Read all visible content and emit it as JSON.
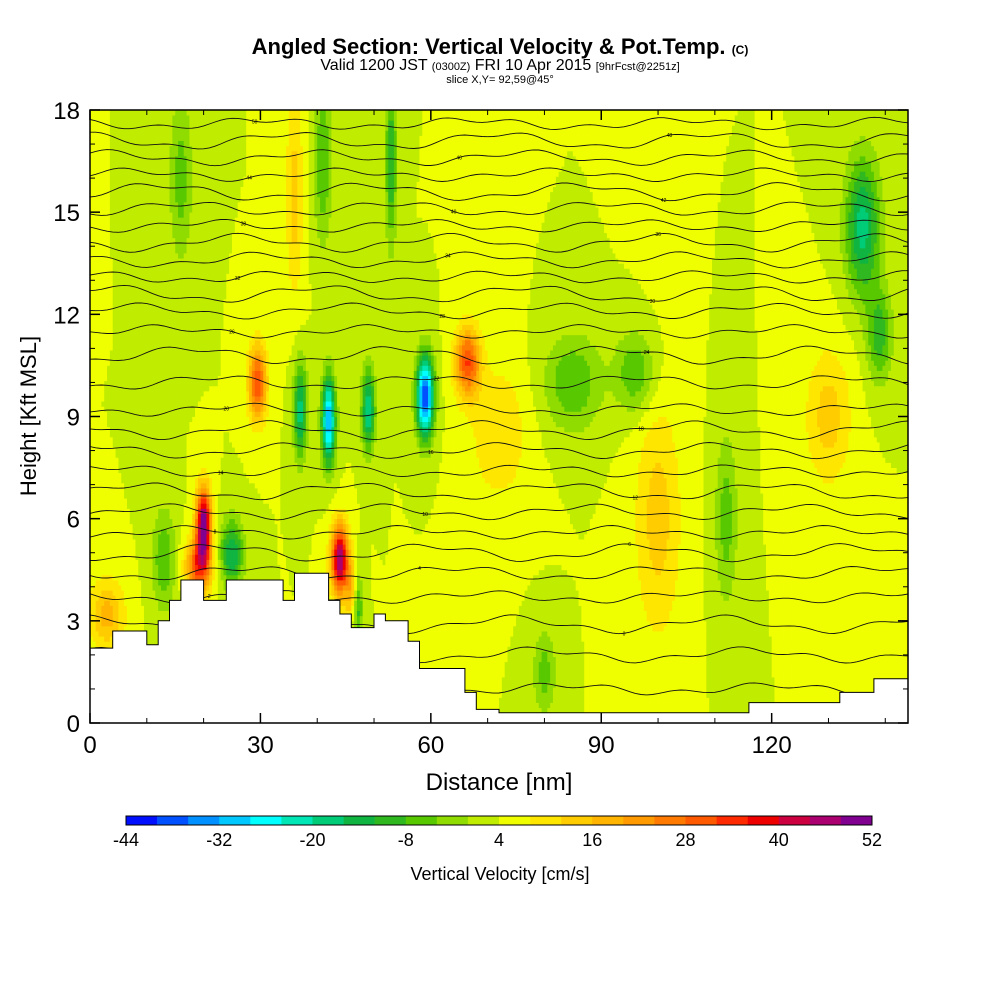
{
  "chart_data": {
    "type": "heatmap",
    "title": "Angled Section: Vertical Velocity & Pot.Temp.",
    "title_suffix": "(C)",
    "subtitle": {
      "valid": "Valid 1200 JST",
      "utc": "(0300Z)",
      "date": "FRI 10 Apr 2015",
      "forecast": "[9hrFcst@2251z]",
      "slice": "slice X,Y= 92,59@45°"
    },
    "xlabel": "Distance [nm]",
    "ylabel": "Height [Kft MSL]",
    "xlim": [
      0,
      144
    ],
    "ylim": [
      0,
      18
    ],
    "xticks": [
      0,
      30,
      60,
      90,
      120
    ],
    "yticks": [
      0,
      3,
      6,
      9,
      12,
      15,
      18
    ],
    "colorbar": {
      "label": "Vertical Velocity [cm/s]",
      "ticks": [
        -44,
        -32,
        -20,
        -8,
        4,
        16,
        28,
        40,
        52
      ],
      "levels": [
        -44,
        -40,
        -36,
        -32,
        -28,
        -24,
        -20,
        -16,
        -12,
        -8,
        -4,
        0,
        4,
        8,
        12,
        16,
        20,
        24,
        28,
        32,
        36,
        40,
        44,
        48,
        52
      ],
      "colors": [
        "#0010ff",
        "#0050ff",
        "#0090ff",
        "#00c8ff",
        "#00ffff",
        "#00e6b4",
        "#00cc78",
        "#10b440",
        "#30b820",
        "#58c800",
        "#90dc00",
        "#c0ec00",
        "#f0ff00",
        "#ffe600",
        "#ffcc00",
        "#ffb400",
        "#ff9a00",
        "#ff7a00",
        "#ff5a00",
        "#ff2a00",
        "#ee0000",
        "#cc0040",
        "#aa0070",
        "#800090"
      ]
    },
    "background_value": 4,
    "terrain": [
      [
        0,
        2.2
      ],
      [
        4,
        2.7
      ],
      [
        8,
        2.7
      ],
      [
        10,
        2.3
      ],
      [
        12,
        3.0
      ],
      [
        14,
        3.6
      ],
      [
        16,
        4.2
      ],
      [
        18,
        4.2
      ],
      [
        20,
        3.6
      ],
      [
        22,
        3.6
      ],
      [
        24,
        4.2
      ],
      [
        28,
        4.2
      ],
      [
        34,
        3.6
      ],
      [
        36,
        4.4
      ],
      [
        40,
        4.4
      ],
      [
        42,
        3.6
      ],
      [
        44,
        3.2
      ],
      [
        46,
        2.8
      ],
      [
        48,
        2.8
      ],
      [
        50,
        3.2
      ],
      [
        52,
        3.0
      ],
      [
        56,
        2.4
      ],
      [
        58,
        1.6
      ],
      [
        62,
        1.6
      ],
      [
        66,
        0.9
      ],
      [
        68,
        0.4
      ],
      [
        72,
        0.3
      ],
      [
        110,
        0.3
      ],
      [
        114,
        0.3
      ],
      [
        116,
        0.6
      ],
      [
        128,
        0.6
      ],
      [
        132,
        0.9
      ],
      [
        138,
        1.3
      ],
      [
        144,
        1.3
      ]
    ],
    "velocity_features": [
      {
        "x": 20,
        "z": 5.8,
        "sx": 1.3,
        "sz": 1.1,
        "w": 48
      },
      {
        "x": 19,
        "z": 4.6,
        "sx": 2.2,
        "sz": 0.8,
        "w": 26
      },
      {
        "x": 44,
        "z": 4.8,
        "sx": 1.5,
        "sz": 1.0,
        "w": 44
      },
      {
        "x": 46.5,
        "z": 3.8,
        "sx": 1.2,
        "sz": 0.9,
        "w": 24
      },
      {
        "x": 29.5,
        "z": 10.0,
        "sx": 1.6,
        "sz": 1.1,
        "w": 28
      },
      {
        "x": 66.5,
        "z": 10.6,
        "sx": 2.2,
        "sz": 1.0,
        "w": 28
      },
      {
        "x": 3,
        "z": 3.2,
        "sx": 3.0,
        "sz": 1.0,
        "w": 14
      },
      {
        "x": 47,
        "z": 3.6,
        "sx": 1.0,
        "sz": 1.0,
        "w": -28
      },
      {
        "x": 42,
        "z": 8.9,
        "sx": 1.2,
        "sz": 1.3,
        "w": -36
      },
      {
        "x": 59,
        "z": 9.6,
        "sx": 1.5,
        "sz": 1.2,
        "w": -44
      },
      {
        "x": 49,
        "z": 9.2,
        "sx": 1.2,
        "sz": 1.2,
        "w": -24
      },
      {
        "x": 37,
        "z": 9.2,
        "sx": 1.2,
        "sz": 1.4,
        "w": -22
      },
      {
        "x": 25,
        "z": 5.0,
        "sx": 2.0,
        "sz": 1.0,
        "w": -20
      },
      {
        "x": 13,
        "z": 4.8,
        "sx": 2.0,
        "sz": 1.5,
        "w": -12
      },
      {
        "x": 136,
        "z": 14.6,
        "sx": 3.0,
        "sz": 2.0,
        "w": -22
      },
      {
        "x": 139,
        "z": 11.4,
        "sx": 2.2,
        "sz": 1.4,
        "w": -14
      },
      {
        "x": 85,
        "z": 10.0,
        "sx": 5.0,
        "sz": 1.4,
        "w": -12
      },
      {
        "x": 96,
        "z": 10.3,
        "sx": 3.5,
        "sz": 1.2,
        "w": -12
      },
      {
        "x": 53,
        "z": 16.5,
        "sx": 1.0,
        "sz": 2.5,
        "w": -16
      },
      {
        "x": 41,
        "z": 16.5,
        "sx": 1.5,
        "sz": 2.5,
        "w": -12
      },
      {
        "x": 16,
        "z": 16.0,
        "sx": 2.0,
        "sz": 2.5,
        "w": -10
      },
      {
        "x": 36,
        "z": 15.5,
        "sx": 1.5,
        "sz": 3.0,
        "w": 10
      },
      {
        "x": 100,
        "z": 6.0,
        "sx": 4.0,
        "sz": 3.5,
        "w": 10
      },
      {
        "x": 130,
        "z": 9.0,
        "sx": 4.0,
        "sz": 2.0,
        "w": 10
      },
      {
        "x": 112,
        "z": 6.0,
        "sx": 2.0,
        "sz": 2.5,
        "w": -10
      },
      {
        "x": 80,
        "z": 1.5,
        "sx": 2.0,
        "sz": 1.2,
        "w": -10
      },
      {
        "x": 72,
        "z": 8.5,
        "sx": 5.0,
        "sz": 2.0,
        "w": 8
      }
    ],
    "isentropes": [
      {
        "label": "-4",
        "base": 1.0
      },
      {
        "label": "-2",
        "base": 2.0
      },
      {
        "label": "0",
        "base": 2.9
      },
      {
        "label": "2",
        "base": 3.7
      },
      {
        "label": "4",
        "base": 4.4
      },
      {
        "label": "6",
        "base": 5.0
      },
      {
        "label": "8",
        "base": 5.6
      },
      {
        "label": "10",
        "base": 6.2
      },
      {
        "label": "12",
        "base": 6.8
      },
      {
        "label": "14",
        "base": 7.4
      },
      {
        "label": "16",
        "base": 8.0
      },
      {
        "label": "18",
        "base": 8.6
      },
      {
        "label": "20",
        "base": 9.2
      },
      {
        "label": "22",
        "base": 10.0
      },
      {
        "label": "24",
        "base": 10.8
      },
      {
        "label": "26",
        "base": 11.5
      },
      {
        "label": "28",
        "base": 12.1
      },
      {
        "label": "30",
        "base": 12.6
      },
      {
        "label": "32",
        "base": 13.1
      },
      {
        "label": "34",
        "base": 13.6
      },
      {
        "label": "36",
        "base": 14.1
      },
      {
        "label": "38",
        "base": 14.6
      },
      {
        "label": "40",
        "base": 15.1
      },
      {
        "label": "42",
        "base": 15.6
      },
      {
        "label": "44",
        "base": 16.1
      },
      {
        "label": "46",
        "base": 16.6
      },
      {
        "label": "48",
        "base": 17.1
      },
      {
        "label": "50",
        "base": 17.6
      }
    ]
  }
}
